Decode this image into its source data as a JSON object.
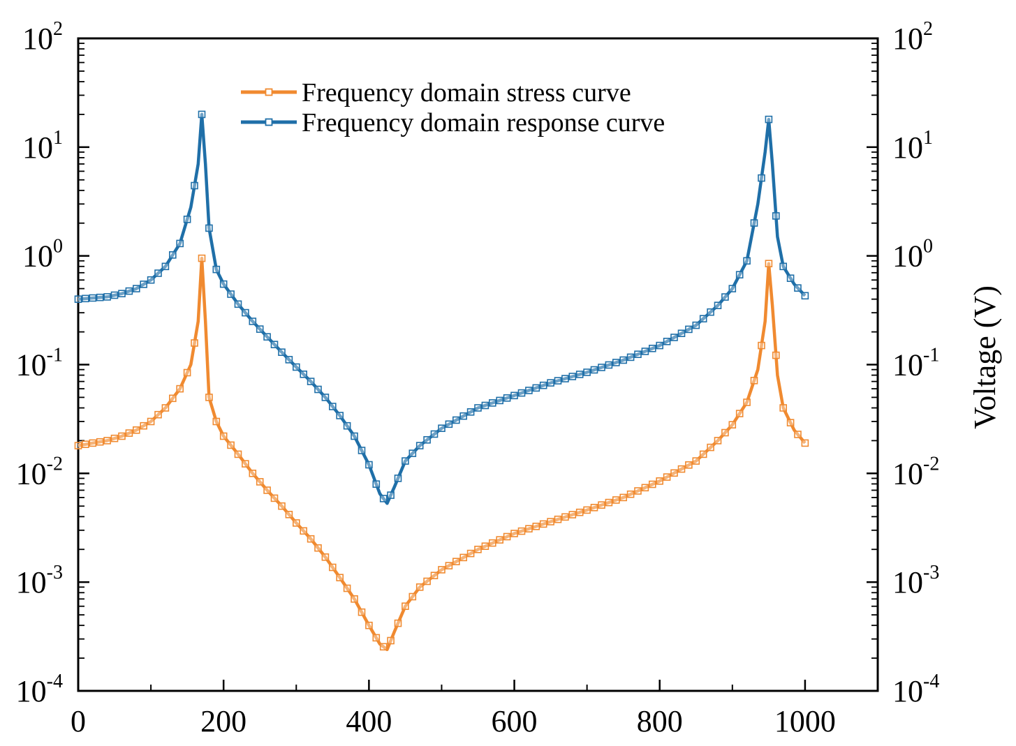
{
  "chart_data": {
    "type": "line",
    "title": "",
    "xlabel": "",
    "ylabel_left": "",
    "ylabel_right": "Voltage (V)",
    "y_scale": "log",
    "xlim": [
      0,
      1100
    ],
    "ylim": [
      0.0001,
      100
    ],
    "x_ticks": [
      {
        "value": 0,
        "label": "0"
      },
      {
        "value": 200,
        "label": "200"
      },
      {
        "value": 400,
        "label": "400"
      },
      {
        "value": 600,
        "label": "600"
      },
      {
        "value": 800,
        "label": "800"
      },
      {
        "value": 1000,
        "label": "1000"
      }
    ],
    "y_ticks": [
      {
        "value": 100,
        "base": "10",
        "exp": "2"
      },
      {
        "value": 10,
        "base": "10",
        "exp": "1"
      },
      {
        "value": 1,
        "base": "10",
        "exp": "0"
      },
      {
        "value": 0.1,
        "base": "10",
        "exp": "-1"
      },
      {
        "value": 0.01,
        "base": "10",
        "exp": "-2"
      },
      {
        "value": 0.001,
        "base": "10",
        "exp": "-3"
      },
      {
        "value": 0.0001,
        "base": "10",
        "exp": "-4"
      }
    ],
    "legend_position": "top-center",
    "series": [
      {
        "name": "Frequency domain stress curve",
        "color": "#F08A30",
        "marker": "hollow-square",
        "x": [
          0,
          20,
          40,
          60,
          80,
          100,
          120,
          140,
          155,
          165,
          170,
          175,
          180,
          190,
          200,
          220,
          240,
          260,
          280,
          300,
          320,
          340,
          360,
          380,
          400,
          415,
          425,
          435,
          450,
          470,
          500,
          550,
          600,
          650,
          700,
          750,
          800,
          850,
          880,
          900,
          920,
          935,
          945,
          950,
          955,
          962,
          970,
          985,
          1000
        ],
        "values": [
          0.018,
          0.019,
          0.02,
          0.022,
          0.025,
          0.03,
          0.04,
          0.06,
          0.1,
          0.25,
          0.95,
          0.25,
          0.05,
          0.03,
          0.022,
          0.015,
          0.01,
          0.007,
          0.005,
          0.0035,
          0.0025,
          0.0017,
          0.0011,
          0.0007,
          0.0004,
          0.00027,
          0.00024,
          0.00035,
          0.0006,
          0.0009,
          0.0013,
          0.002,
          0.0028,
          0.0036,
          0.0046,
          0.006,
          0.0085,
          0.013,
          0.02,
          0.028,
          0.045,
          0.09,
          0.25,
          0.85,
          0.35,
          0.08,
          0.04,
          0.025,
          0.019
        ]
      },
      {
        "name": "Frequency domain response curve",
        "color": "#1F6FA8",
        "marker": "hollow-square",
        "x": [
          0,
          20,
          40,
          60,
          80,
          100,
          120,
          140,
          155,
          165,
          170,
          175,
          180,
          190,
          200,
          220,
          240,
          260,
          280,
          300,
          320,
          340,
          360,
          380,
          400,
          415,
          425,
          435,
          450,
          470,
          500,
          550,
          600,
          650,
          700,
          750,
          800,
          850,
          880,
          900,
          920,
          935,
          945,
          950,
          955,
          962,
          970,
          985,
          1000
        ],
        "values": [
          0.4,
          0.41,
          0.42,
          0.45,
          0.5,
          0.6,
          0.8,
          1.3,
          2.8,
          7,
          20,
          7,
          1.8,
          0.75,
          0.55,
          0.36,
          0.25,
          0.18,
          0.13,
          0.095,
          0.07,
          0.05,
          0.034,
          0.022,
          0.012,
          0.0065,
          0.0053,
          0.0075,
          0.013,
          0.018,
          0.026,
          0.04,
          0.052,
          0.068,
          0.085,
          0.11,
          0.15,
          0.23,
          0.35,
          0.5,
          0.9,
          3,
          9,
          18,
          7,
          1.5,
          0.8,
          0.55,
          0.43
        ]
      }
    ]
  }
}
